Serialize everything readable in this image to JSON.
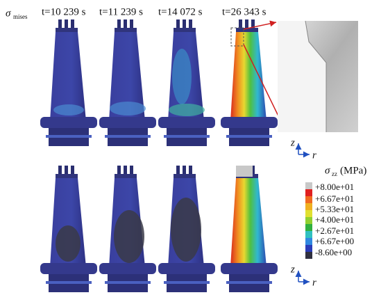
{
  "labels": {
    "stress": {
      "symbol": "σ",
      "subscript": "mises"
    },
    "times": [
      "t=10 239 s",
      "t=11 239 s",
      "t=14 072 s",
      "t=26 343 s"
    ]
  },
  "legend": {
    "symbol": "σ",
    "subscript": "zz",
    "unit": "(MPa)",
    "values": [
      "+8.00e+01",
      "+6.67e+01",
      "+5.33e+01",
      "+4.00e+01",
      "+2.67e+01",
      "+6.67e+00",
      "-8.60e+00"
    ]
  },
  "axes": [
    {
      "vertical": "z",
      "horizontal": "r"
    },
    {
      "vertical": "z",
      "horizontal": "r"
    }
  ]
}
